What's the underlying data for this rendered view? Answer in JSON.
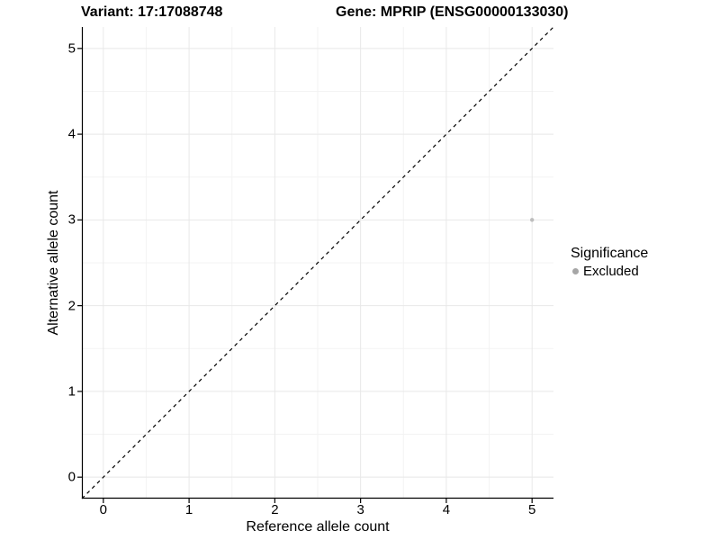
{
  "header": {
    "variant_title": "Variant: 17:17088748",
    "gene_title": "Gene: MPRIP (ENSG00000133030)"
  },
  "chart_data": {
    "type": "scatter",
    "title_left": "Variant: 17:17088748",
    "title_right": "Gene: MPRIP (ENSG00000133030)",
    "xlabel": "Reference allele count",
    "ylabel": "Alternative allele count",
    "xlim": [
      -0.25,
      5.25
    ],
    "ylim": [
      -0.25,
      5.25
    ],
    "x_ticks": [
      0,
      1,
      2,
      3,
      4,
      5
    ],
    "y_ticks": [
      0,
      1,
      2,
      3,
      4,
      5
    ],
    "x_minor_ticks": [
      0.5,
      1.5,
      2.5,
      3.5,
      4.5
    ],
    "y_minor_ticks": [
      0.5,
      1.5,
      2.5,
      3.5,
      4.5
    ],
    "grid": true,
    "legend_position": "right",
    "series": [
      {
        "name": "Excluded",
        "points": [
          {
            "x": 5,
            "y": 3
          }
        ],
        "point_color": "#bdbdbd",
        "point_radius": 2.2
      }
    ],
    "reference_line": {
      "description": "identity line y = x",
      "style": "dashed",
      "color": "#000000"
    },
    "legend": {
      "title": "Significance",
      "entries": [
        {
          "label": "Excluded",
          "color": "#a6a6a6"
        }
      ]
    }
  },
  "colors": {
    "background": "#ffffff",
    "axis_line": "#000000",
    "tick_mark": "#000000",
    "grid_major": "#e8e8e8",
    "grid_minor": "#f3f3f3",
    "point": "#bdbdbd",
    "legend_dot": "#a6a6a6",
    "text": "#000000"
  }
}
